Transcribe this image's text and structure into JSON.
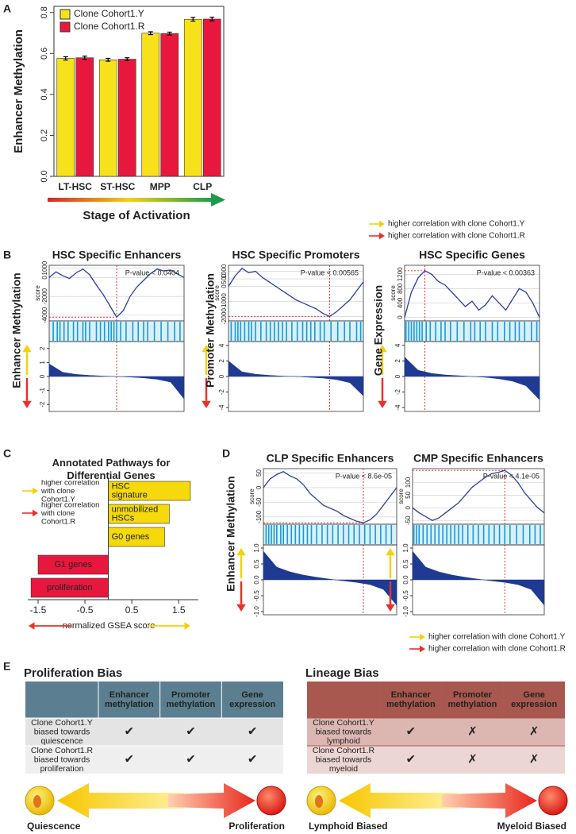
{
  "panel_labels": [
    "A",
    "B",
    "C",
    "D",
    "E"
  ],
  "direction_legends": {
    "b": [
      "higher correlation with clone Cohort1.Y",
      "higher correlation with clone Cohort1.R"
    ],
    "c": [
      "higher correlation with clone Cohort1.Y",
      "higher correlation with clone Cohort1.R"
    ],
    "d": [
      "higher correlation with clone Cohort1.Y",
      "higher correlation with clone Cohort1.R"
    ]
  },
  "chart_data": [
    {
      "type": "bar",
      "ylabel": "Enhancer Methylation",
      "xlabel": "Stage of Activation",
      "categories": [
        "LT-HSC",
        "ST-HSC",
        "MPP",
        "CLP"
      ],
      "series": [
        {
          "name": "Clone Cohort1.Y",
          "color": "#f7e11b",
          "values": [
            0.576,
            0.569,
            0.699,
            0.767
          ],
          "errors": [
            0.008,
            0.007,
            0.007,
            0.009
          ]
        },
        {
          "name": "Clone Cohort1.R",
          "color": "#e8173d",
          "values": [
            0.579,
            0.572,
            0.697,
            0.768
          ],
          "errors": [
            0.008,
            0.007,
            0.007,
            0.009
          ]
        }
      ],
      "ylim": [
        0,
        0.83
      ],
      "yticks": [
        {
          "value": 0,
          "label": "0.0"
        },
        0.2,
        0.4,
        0.6,
        0.8
      ],
      "legend": "top-left"
    },
    {
      "type": "gsea",
      "title": "HSC Specific Enhancers",
      "annotation": "P-value < 0.0404",
      "ylabel": "Enhancer Methylation",
      "score_label": "score",
      "xlim": [
        0,
        100
      ],
      "ylim": [
        -4600,
        1300
      ],
      "yticks": [
        -4000,
        -2000,
        0,
        1000
      ],
      "scores": [
        0,
        600,
        200,
        -100,
        500,
        900,
        300,
        -800,
        -1800,
        -3000,
        -4200,
        -3500,
        -2000,
        -1000,
        -300,
        400,
        900,
        700,
        800,
        400,
        0
      ],
      "hits": [
        3,
        6,
        8,
        11,
        14,
        18,
        21,
        25,
        27,
        30,
        35,
        38,
        41,
        44,
        46,
        48,
        50,
        53,
        57,
        62,
        66,
        70,
        73,
        78,
        83,
        88,
        93,
        97
      ],
      "metric_ylim": [
        -2.5,
        2.5
      ],
      "metric_yticks": [
        -2,
        -1,
        0,
        1,
        2
      ],
      "metric": [
        0.9,
        0.3,
        0.15,
        0.08,
        0.03,
        0,
        -0.04,
        -0.1,
        -0.2,
        -0.4,
        -1.6
      ],
      "line_color": "#2a3f9e",
      "area_color": "#1f3a93"
    },
    {
      "type": "gsea",
      "title": "HSC Specific Promoters",
      "annotation": "P-value < 0.00565",
      "ylabel": "Promoter Methylation",
      "score_label": "score",
      "xlim": [
        0,
        100
      ],
      "ylim": [
        -2300,
        1400
      ],
      "yticks": [
        -2000,
        -1000,
        0,
        500,
        1000
      ],
      "scores": [
        0,
        700,
        1200,
        900,
        1000,
        600,
        300,
        0,
        -300,
        -600,
        -900,
        -1100,
        -1300,
        -1500,
        -1800,
        -2000,
        -1700,
        -1300,
        -900,
        -300,
        300
      ],
      "hits": [
        2,
        5,
        7,
        9,
        12,
        15,
        17,
        20,
        24,
        28,
        31,
        34,
        37,
        40,
        43,
        47,
        51,
        55,
        58,
        61,
        64,
        68,
        71,
        76,
        81,
        86,
        90,
        95,
        98
      ],
      "metric_ylim": [
        -4.5,
        4.5
      ],
      "metric_yticks": [
        -4,
        -2,
        0,
        2,
        4
      ],
      "metric": [
        2,
        0.6,
        0.3,
        0.15,
        0.05,
        0,
        -0.1,
        -0.2,
        -0.4,
        -0.8,
        -2.5
      ],
      "line_color": "#2a3f9e",
      "area_color": "#1f3a93"
    },
    {
      "type": "gsea",
      "title": "HSC Specific Genes",
      "annotation": "P-value < 0.00363",
      "ylabel": "Gene Expression",
      "score_label": "score",
      "xlim": [
        0,
        100
      ],
      "ylim": [
        -100,
        1450
      ],
      "yticks": [
        0,
        400,
        800,
        1200
      ],
      "scores": [
        0,
        700,
        1100,
        1300,
        1200,
        1000,
        900,
        700,
        500,
        300,
        450,
        200,
        350,
        600,
        400,
        200,
        500,
        800,
        700,
        400,
        0
      ],
      "hits": [
        1,
        3,
        5,
        7,
        9,
        11,
        13,
        16,
        19,
        23,
        27,
        30,
        34,
        39,
        44,
        49,
        52,
        56,
        60,
        65,
        69,
        74,
        78,
        82,
        85,
        89,
        94,
        98
      ],
      "metric_ylim": [
        -4.5,
        4.5
      ],
      "metric_yticks": [
        -4,
        -2,
        0,
        2,
        4
      ],
      "metric": [
        2.5,
        0.8,
        0.4,
        0.2,
        0.1,
        0,
        -0.1,
        -0.3,
        -0.6,
        -1.2,
        -3
      ],
      "line_color": "#2a3f9e",
      "area_color": "#1f3a93"
    },
    {
      "type": "hbar",
      "title": "Annotated Pathways for Differential Genes",
      "xlabel": "normalized GSEA score",
      "categories": [
        "HSC signature",
        "unmobilized HSCs",
        "G0 genes",
        "G1 genes",
        "proliferation"
      ],
      "values": [
        1.75,
        1.3,
        1.2,
        -1.5,
        -1.65
      ],
      "positive_color": "#f5d90a",
      "negative_color": "#e8173d",
      "xlim": [
        -1.72,
        1.92
      ],
      "xticks": [
        -1.5,
        -0.5,
        0.5,
        1.5
      ]
    },
    {
      "type": "gsea",
      "title": "CLP Specific Enhancers",
      "annotation": "P-value < 8.6e-05",
      "ylabel": "Enhancer Methylation",
      "score_label": "score",
      "xlim": [
        0,
        100
      ],
      "ylim": [
        -125,
        65
      ],
      "yticks": [
        -100,
        -50,
        0,
        50
      ],
      "scores": [
        0,
        30,
        45,
        55,
        40,
        30,
        10,
        -20,
        -40,
        -60,
        -70,
        -80,
        -95,
        -105,
        -115,
        -120,
        -110,
        -90,
        -60,
        -30,
        0
      ],
      "hits": [
        2,
        4,
        6,
        8,
        10,
        13,
        15,
        18,
        21,
        24,
        27,
        30,
        33,
        36,
        40,
        44,
        48,
        52,
        56,
        60,
        64,
        68,
        72,
        76,
        80,
        84,
        88,
        92,
        96
      ],
      "metric_ylim": [
        -1.1,
        1.1
      ],
      "metric_yticks": [
        {
          "value": -1,
          "label": "-1.0"
        },
        -0.5,
        {
          "value": 0,
          "label": "0.0"
        },
        0.5,
        {
          "value": 1,
          "label": "1.0"
        }
      ],
      "metric": [
        0.9,
        0.4,
        0.25,
        0.15,
        0.08,
        0.02,
        -0.03,
        -0.08,
        -0.15,
        -0.3,
        -0.8
      ],
      "line_color": "#2a3f9e",
      "area_color": "#1f3a93"
    },
    {
      "type": "gsea",
      "title": "CMP Specific Enhancers",
      "annotation": "P-value < 4.1e-05",
      "score_label": "score",
      "xlim": [
        0,
        100
      ],
      "ylim": [
        -65,
        155
      ],
      "yticks": [
        -50,
        0,
        50,
        100
      ],
      "scores": [
        0,
        -20,
        -35,
        -50,
        -40,
        -20,
        0,
        20,
        50,
        80,
        100,
        120,
        135,
        140,
        148,
        130,
        100,
        60,
        30,
        0,
        -20
      ],
      "hits": [
        1,
        3,
        5,
        8,
        11,
        14,
        17,
        20,
        23,
        26,
        29,
        32,
        35,
        38,
        42,
        46,
        50,
        54,
        58,
        62,
        66,
        70,
        74,
        79,
        84,
        89,
        93,
        97
      ],
      "metric_ylim": [
        -1.1,
        1.1
      ],
      "metric_yticks": [
        {
          "value": -1,
          "label": "-1.0"
        },
        -0.5,
        {
          "value": 0,
          "label": "0.0"
        },
        0.5,
        {
          "value": 1,
          "label": "1.0"
        }
      ],
      "metric": [
        0.9,
        0.4,
        0.25,
        0.15,
        0.08,
        0.02,
        -0.03,
        -0.08,
        -0.15,
        -0.3,
        -0.8
      ],
      "line_color": "#2a3f9e",
      "area_color": "#1f3a93"
    }
  ],
  "tables": [
    {
      "title": "Proliferation Bias",
      "header": [
        "Enhancer methylation",
        "Promoter methylation",
        "Gene expression"
      ],
      "rows": [
        {
          "label": "Clone Cohort1.Y biased towards quiescence",
          "cells": [
            "✔",
            "✔",
            "✔"
          ]
        },
        {
          "label": "Clone Cohort1.R biased towards proliferation",
          "cells": [
            "✔",
            "✔",
            "✔"
          ]
        }
      ],
      "ends": [
        "Quiescence",
        "Proliferation"
      ]
    },
    {
      "title": "Lineage Bias",
      "header": [
        "Enhancer methylation",
        "Promoter methylation",
        "Gene expression"
      ],
      "rows": [
        {
          "label": "Clone Cohort1.Y biased towards lymphoid",
          "cells": [
            "✔",
            "✗",
            "✗"
          ]
        },
        {
          "label": "Clone Cohort1.R biased towards myeloid",
          "cells": [
            "✔",
            "✗",
            "✗"
          ]
        }
      ],
      "ends": [
        "Lymphoid Biased",
        "Myeloid Biased"
      ]
    }
  ]
}
